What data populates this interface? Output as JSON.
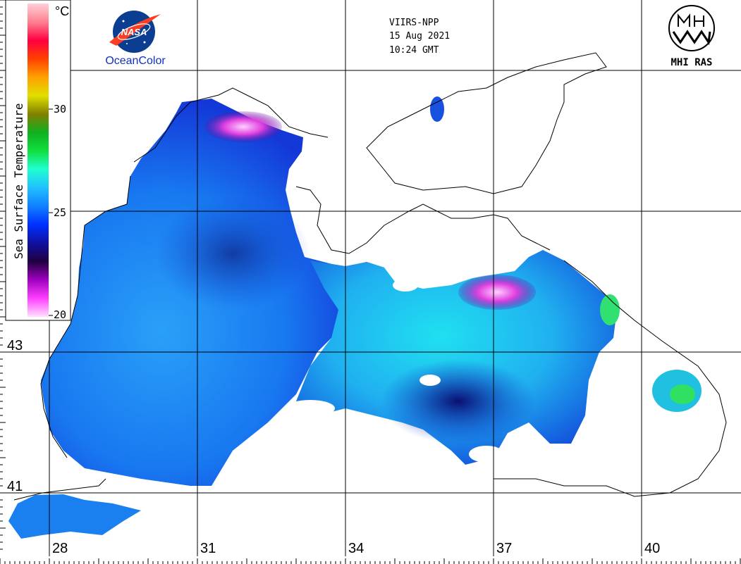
{
  "header": {
    "satellite": "VIIRS-NPP",
    "date": "15 Aug 2021",
    "time": "10:24 GMT"
  },
  "logos": {
    "nasa_text": "NASA",
    "oceancolor_text": "OceanColor",
    "mhi_text": "MHI RAS"
  },
  "colorbar": {
    "title": "Sea Surface Temperature",
    "unit": "°C",
    "ticks": [
      "30",
      "25",
      "20"
    ],
    "min": 20,
    "max": 35,
    "colors": [
      "#ffe0ff",
      "#ff40ff",
      "#a000c0",
      "#200040",
      "#1010a0",
      "#0030ff",
      "#1080ff",
      "#20c0ff",
      "#20ffd0",
      "#10e040",
      "#10b020",
      "#808000",
      "#e0e000",
      "#ffa000",
      "#ff4000",
      "#ff0040",
      "#ff8090",
      "#ffd0d8"
    ]
  },
  "grid": {
    "lon_labels": [
      "28",
      "31",
      "34",
      "37",
      "40"
    ],
    "lat_labels": [
      "43",
      "41"
    ]
  },
  "palette": {
    "sea_deep": "#1030d0",
    "sea_mid": "#1870f0",
    "sea_warm": "#20c8f0",
    "sea_hot": "#30e890",
    "cold_upwelling": "#d030d0",
    "coast": "#000000",
    "land": "#ffffff"
  }
}
